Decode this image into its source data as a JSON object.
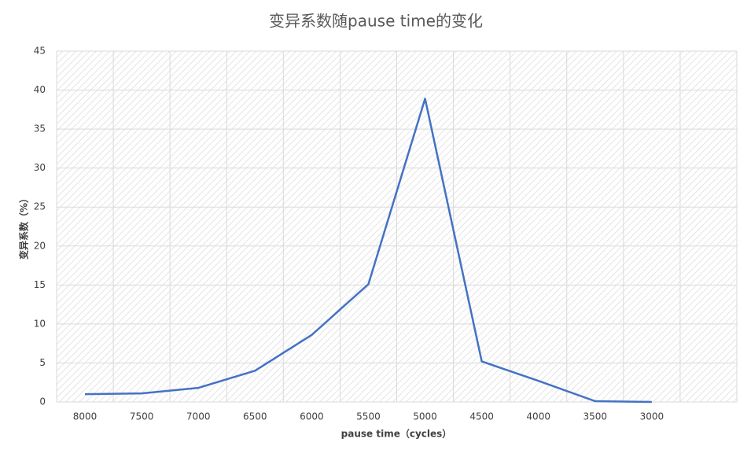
{
  "chart_data": {
    "type": "line",
    "title": "变异系数随pause time的变化",
    "x_label": "pause time（cycles）",
    "y_label": "变异系数（%）",
    "categories": [
      "8000",
      "7500",
      "7000",
      "6500",
      "6000",
      "5500",
      "5000",
      "4500",
      "4000",
      "3500",
      "3000",
      null
    ],
    "series": [
      {
        "name": "变异系数",
        "color": "#4472c4",
        "values": [
          1.0,
          1.1,
          1.8,
          4.0,
          8.6,
          15.1,
          38.9,
          5.2,
          2.7,
          0.1,
          0.0,
          null
        ]
      }
    ],
    "ylim": [
      0,
      45
    ],
    "yticks": [
      0,
      5,
      10,
      15,
      20,
      25,
      30,
      35,
      40,
      45
    ],
    "grid": true
  }
}
